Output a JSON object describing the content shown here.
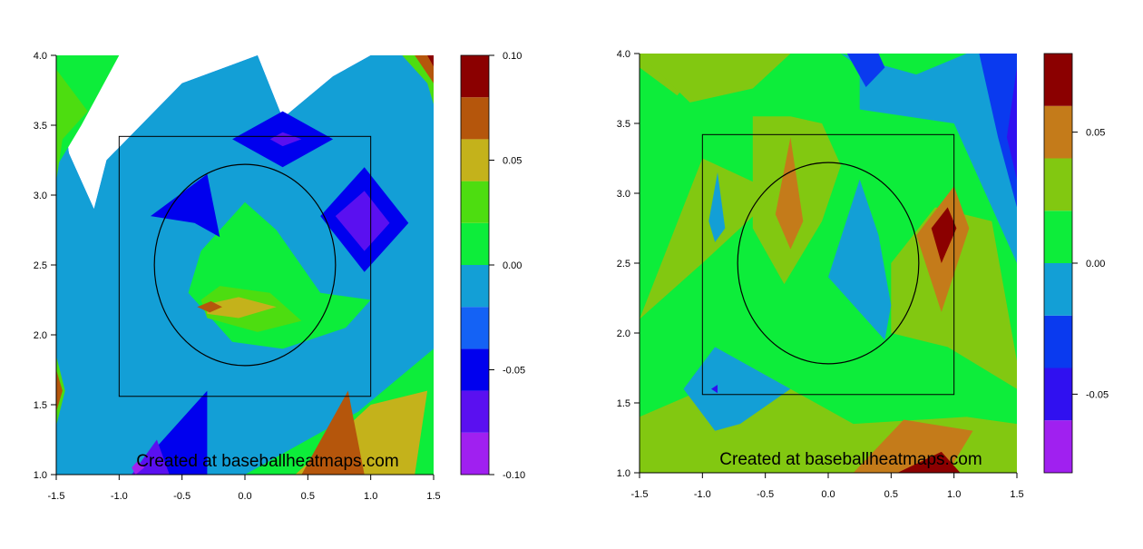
{
  "chart_data": [
    {
      "type": "heatmap",
      "subtype": "filled-contour",
      "title": "",
      "xlabel": "",
      "ylabel": "",
      "xlim": [
        -1.5,
        1.5
      ],
      "ylim": [
        1.0,
        4.0
      ],
      "xticks": [
        "-1.5",
        "-1.0",
        "-0.5",
        "0.0",
        "0.5",
        "1.0",
        "1.5"
      ],
      "yticks": [
        "1.0",
        "1.5",
        "2.0",
        "2.5",
        "3.0",
        "3.5",
        "4.0"
      ],
      "strike_zone": {
        "x": [
          -1.0,
          1.0
        ],
        "y": [
          1.56,
          3.42
        ]
      },
      "circle": {
        "cx": 0.0,
        "cy": 2.5,
        "r": 0.72
      },
      "watermark": "Created at baseballheatmaps.com",
      "colorbar": {
        "levels": [
          -0.1,
          -0.08,
          -0.06,
          -0.04,
          -0.02,
          0.0,
          0.02,
          0.04,
          0.06,
          0.08,
          0.1
        ],
        "colors": [
          "#a020f0",
          "#5a10f0",
          "#0000ee",
          "#1462f5",
          "#139fd6",
          "#0ded3a",
          "#4ddd10",
          "#c4b21b",
          "#b5560c",
          "#8b0000"
        ],
        "tick_labels": [
          "0.10",
          "0.05",
          "0.00",
          "-0.05",
          "-0.10"
        ],
        "tick_values": [
          0.1,
          0.05,
          0.0,
          -0.05,
          -0.1
        ]
      },
      "regions": [
        {
          "level": -0.02,
          "x": [
            -1.5,
            -1.4,
            -1.2,
            -1.1,
            -0.5,
            0.1,
            0.3,
            0.7,
            1.0,
            1.5,
            1.5,
            -1.5
          ],
          "y": [
            4.0,
            3.3,
            2.9,
            3.25,
            3.8,
            4.0,
            3.55,
            3.85,
            4.0,
            4.0,
            1.0,
            1.0
          ]
        },
        {
          "level": -0.01,
          "x": [
            -1.5,
            -1.4,
            -1.2,
            -1.1,
            -0.5,
            0.1,
            0.3,
            0.7,
            1.0,
            1.5,
            1.5,
            -1.5
          ],
          "y": [
            4.0,
            3.3,
            2.9,
            3.25,
            3.8,
            4.0,
            3.55,
            3.85,
            4.0,
            4.0,
            1.0,
            1.0
          ]
        },
        {
          "level": 0.01,
          "x": [
            -1.5,
            -1.3,
            -1.0,
            -1.5
          ],
          "y": [
            3.2,
            3.5,
            4.0,
            4.0
          ]
        },
        {
          "level": 0.03,
          "x": [
            -1.5,
            -1.45,
            -1.25,
            -1.5
          ],
          "y": [
            3.1,
            3.4,
            3.6,
            3.9
          ]
        },
        {
          "level": 0.03,
          "x": [
            -1.5,
            -1.43,
            -1.5
          ],
          "y": [
            1.85,
            1.6,
            1.35
          ]
        },
        {
          "level": 0.07,
          "x": [
            -1.5,
            -1.45,
            -1.5
          ],
          "y": [
            1.75,
            1.6,
            1.45
          ]
        },
        {
          "level": 0.01,
          "x": [
            -0.35,
            0.0,
            0.25,
            0.6,
            1.0,
            0.8,
            0.3,
            -0.1,
            -0.45
          ],
          "y": [
            2.6,
            2.95,
            2.75,
            2.3,
            2.25,
            2.05,
            1.9,
            1.95,
            2.3
          ]
        },
        {
          "level": 0.03,
          "x": [
            -0.35,
            -0.2,
            0.2,
            0.45,
            0.1,
            -0.3
          ],
          "y": [
            2.25,
            2.35,
            2.3,
            2.1,
            2.02,
            2.12
          ]
        },
        {
          "level": 0.05,
          "x": [
            -0.3,
            -0.05,
            0.25,
            -0.05,
            -0.3
          ],
          "y": [
            2.22,
            2.27,
            2.2,
            2.12,
            2.15
          ]
        },
        {
          "level": 0.07,
          "x": [
            -0.38,
            -0.27,
            -0.18,
            -0.28
          ],
          "y": [
            2.2,
            2.24,
            2.2,
            2.16
          ]
        },
        {
          "level": 0.01,
          "x": [
            0.0,
            0.9,
            1.5,
            1.5,
            0.05
          ],
          "y": [
            1.0,
            1.45,
            1.9,
            1.0,
            1.0
          ]
        },
        {
          "level": 0.03,
          "x": [
            0.4,
            1.0,
            1.45,
            1.35,
            0.55
          ],
          "y": [
            1.0,
            1.5,
            1.6,
            1.0,
            1.0
          ]
        },
        {
          "level": 0.05,
          "x": [
            0.4,
            1.0,
            1.45,
            1.35,
            0.55
          ],
          "y": [
            1.0,
            1.5,
            1.6,
            1.0,
            1.0
          ]
        },
        {
          "level": 0.07,
          "x": [
            0.45,
            0.82,
            0.95,
            0.65
          ],
          "y": [
            1.0,
            1.6,
            1.0,
            1.0
          ]
        },
        {
          "level": 0.03,
          "x": [
            1.25,
            1.45,
            1.5,
            1.5
          ],
          "y": [
            4.0,
            3.8,
            3.65,
            4.0
          ]
        },
        {
          "level": 0.07,
          "x": [
            1.35,
            1.5,
            1.5
          ],
          "y": [
            4.0,
            3.8,
            4.0
          ]
        },
        {
          "level": 0.09,
          "x": [
            1.45,
            1.5,
            1.5
          ],
          "y": [
            4.0,
            3.92,
            4.0
          ]
        },
        {
          "level": -0.05,
          "x": [
            -0.75,
            -0.3,
            -0.2,
            -0.4
          ],
          "y": [
            2.85,
            3.15,
            2.7,
            2.8
          ]
        },
        {
          "level": -0.05,
          "x": [
            -0.1,
            0.3,
            0.7,
            0.3
          ],
          "y": [
            3.4,
            3.6,
            3.4,
            3.2
          ]
        },
        {
          "level": -0.05,
          "x": [
            0.6,
            0.95,
            1.3,
            0.95
          ],
          "y": [
            2.85,
            3.2,
            2.8,
            2.45
          ]
        },
        {
          "level": -0.07,
          "x": [
            0.72,
            0.95,
            1.15,
            0.95
          ],
          "y": [
            2.85,
            3.03,
            2.8,
            2.6
          ]
        },
        {
          "level": -0.07,
          "x": [
            0.2,
            0.3,
            0.45,
            0.3
          ],
          "y": [
            3.4,
            3.45,
            3.4,
            3.35
          ]
        },
        {
          "level": -0.05,
          "x": [
            -0.9,
            -0.3,
            -0.3,
            -0.95
          ],
          "y": [
            1.0,
            1.6,
            1.0,
            1.0
          ]
        },
        {
          "level": -0.07,
          "x": [
            -0.9,
            -0.7,
            -0.6,
            -0.9
          ],
          "y": [
            1.0,
            1.25,
            1.0,
            1.0
          ]
        },
        {
          "level": -0.09,
          "x": [
            -0.9,
            -0.85,
            -0.8,
            -0.87
          ],
          "y": [
            1.05,
            1.1,
            1.05,
            1.0
          ]
        }
      ]
    },
    {
      "type": "heatmap",
      "subtype": "filled-contour",
      "title": "",
      "xlabel": "",
      "ylabel": "",
      "xlim": [
        -1.5,
        1.5
      ],
      "ylim": [
        1.0,
        4.0
      ],
      "xticks": [
        "-1.5",
        "-1.0",
        "-0.5",
        "0.0",
        "0.5",
        "1.0",
        "1.5"
      ],
      "yticks": [
        "1.0",
        "1.5",
        "2.0",
        "2.5",
        "3.0",
        "3.5",
        "4.0"
      ],
      "strike_zone": {
        "x": [
          -1.0,
          1.0
        ],
        "y": [
          1.56,
          3.42
        ]
      },
      "circle": {
        "cx": 0.0,
        "cy": 2.5,
        "r": 0.72
      },
      "watermark": "Created at baseballheatmaps.com",
      "colorbar": {
        "levels": [
          -0.08,
          -0.06,
          -0.04,
          -0.02,
          0.0,
          0.02,
          0.04,
          0.06,
          0.08
        ],
        "colors": [
          "#a020f0",
          "#3010f0",
          "#0a3aef",
          "#139fd6",
          "#0ded3a",
          "#82c811",
          "#c47b1a",
          "#8b0000"
        ],
        "tick_labels": [
          "0.05",
          "0.00",
          "-0.05"
        ],
        "tick_values": [
          0.05,
          0.0,
          -0.05
        ]
      },
      "regions": [
        {
          "level": 0.01,
          "x": [
            -1.5,
            1.5,
            1.5,
            -1.5
          ],
          "y": [
            1.0,
            1.0,
            4.0,
            4.0
          ]
        },
        {
          "level": 0.03,
          "x": [
            -1.5,
            -1.2,
            -0.95,
            -0.55,
            -1.5
          ],
          "y": [
            3.9,
            3.7,
            4.0,
            4.0,
            4.0
          ]
        },
        {
          "level": 0.03,
          "x": [
            -1.5,
            -1.1,
            -0.6,
            -0.3,
            -1.5
          ],
          "y": [
            4.0,
            3.65,
            3.75,
            4.0,
            4.0
          ]
        },
        {
          "level": 0.03,
          "x": [
            -0.6,
            -0.3,
            -0.05,
            0.1,
            -0.05,
            -0.35,
            -0.6
          ],
          "y": [
            3.55,
            3.55,
            3.5,
            3.2,
            2.8,
            2.35,
            2.75
          ]
        },
        {
          "level": 0.03,
          "x": [
            0.5,
            0.85,
            1.3,
            1.5,
            1.5,
            0.95,
            0.5
          ],
          "y": [
            2.5,
            2.9,
            2.8,
            1.8,
            1.6,
            1.9,
            2.0
          ]
        },
        {
          "level": 0.03,
          "x": [
            -1.5,
            -0.6,
            0.2,
            1.1,
            1.5,
            1.5,
            -1.5
          ],
          "y": [
            1.4,
            1.75,
            1.35,
            1.4,
            1.35,
            1.0,
            1.0
          ]
        },
        {
          "level": 0.03,
          "x": [
            -1.5,
            -1.0,
            -0.4,
            -1.0
          ],
          "y": [
            2.1,
            2.5,
            3.0,
            3.25
          ]
        },
        {
          "level": 0.05,
          "x": [
            -0.3,
            -0.2,
            -0.3,
            -0.42
          ],
          "y": [
            3.4,
            2.8,
            2.6,
            2.85
          ]
        },
        {
          "level": 0.05,
          "x": [
            0.7,
            1.0,
            1.12,
            0.9
          ],
          "y": [
            2.7,
            3.05,
            2.75,
            2.15
          ]
        },
        {
          "level": 0.07,
          "x": [
            0.82,
            0.95,
            1.02,
            0.9
          ],
          "y": [
            2.75,
            2.9,
            2.75,
            2.5
          ]
        },
        {
          "level": 0.05,
          "x": [
            0.2,
            0.6,
            1.15,
            0.95,
            0.15
          ],
          "y": [
            1.0,
            1.38,
            1.3,
            1.0,
            1.0
          ]
        },
        {
          "level": 0.07,
          "x": [
            0.55,
            0.9,
            1.05,
            0.65
          ],
          "y": [
            1.0,
            1.15,
            1.0,
            1.0
          ]
        },
        {
          "level": -0.01,
          "x": [
            0.25,
            0.4,
            0.5,
            0.45,
            0.3,
            0.0
          ],
          "y": [
            3.1,
            2.7,
            2.2,
            1.95,
            2.1,
            2.4
          ]
        },
        {
          "level": -0.01,
          "x": [
            -0.95,
            -0.88,
            -0.82,
            -0.9
          ],
          "y": [
            2.8,
            3.15,
            2.75,
            2.65
          ]
        },
        {
          "level": -0.01,
          "x": [
            -1.15,
            -0.9,
            -0.3,
            -0.7,
            -0.9
          ],
          "y": [
            1.6,
            1.9,
            1.6,
            1.35,
            1.3
          ]
        },
        {
          "level": -0.01,
          "x": [
            0.1,
            0.25,
            0.25,
            1.0,
            1.5,
            1.5,
            1.1,
            0.7,
            0.1
          ],
          "y": [
            4.0,
            3.9,
            3.6,
            3.5,
            2.5,
            4.0,
            4.0,
            3.85,
            4.0
          ]
        },
        {
          "level": -0.03,
          "x": [
            0.15,
            0.3,
            0.45,
            0.4,
            0.15
          ],
          "y": [
            4.0,
            3.76,
            3.9,
            4.0,
            4.0
          ]
        },
        {
          "level": -0.03,
          "x": [
            1.2,
            1.35,
            1.5,
            1.5,
            1.45
          ],
          "y": [
            4.0,
            3.4,
            2.9,
            4.0,
            4.0
          ]
        },
        {
          "level": -0.05,
          "x": [
            1.42,
            1.5,
            1.5
          ],
          "y": [
            3.4,
            3.1,
            3.9
          ]
        },
        {
          "level": -0.05,
          "x": [
            -0.93,
            -0.88,
            -0.88
          ],
          "y": [
            1.6,
            1.63,
            1.57
          ]
        }
      ]
    }
  ]
}
